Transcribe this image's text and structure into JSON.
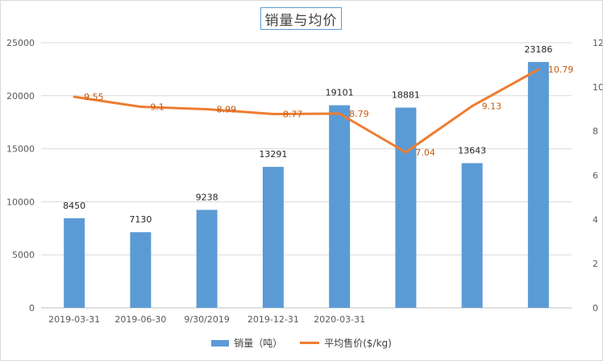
{
  "chart_data": {
    "type": "bar+line",
    "title": "销量与均价",
    "categories": [
      "2019-03-31",
      "2019-06-30",
      "9/30/2019",
      "2019-12-31",
      "2020-03-31",
      "",
      "",
      ""
    ],
    "series": [
      {
        "name": "销量（吨）",
        "type": "bar",
        "axis": "left",
        "color": "#5b9bd5",
        "values": [
          8450,
          7130,
          9238,
          13291,
          19101,
          18881,
          13643,
          23186
        ],
        "labels": [
          "8450",
          "7130",
          "9238",
          "13291",
          "19101",
          "18881",
          "13643",
          "23186"
        ]
      },
      {
        "name": "平均售价($/kg)",
        "type": "line",
        "axis": "right",
        "color": "#ed7d31",
        "values": [
          9.55,
          9.1,
          8.99,
          8.77,
          8.79,
          7.04,
          9.13,
          10.79
        ],
        "labels": [
          "9.55",
          "9.1",
          "8.99",
          "8.77",
          "8.79",
          "7.04",
          "9.13",
          "10.79"
        ]
      }
    ],
    "y_left": {
      "min": 0,
      "max": 25000,
      "ticks": [
        "0",
        "5000",
        "10000",
        "15000",
        "20000",
        "25000"
      ]
    },
    "y_right": {
      "min": 0,
      "max": 12,
      "ticks": [
        "0",
        "2",
        "4",
        "6",
        "8",
        "10",
        "12"
      ]
    },
    "grid": true,
    "legend_position": "bottom"
  }
}
